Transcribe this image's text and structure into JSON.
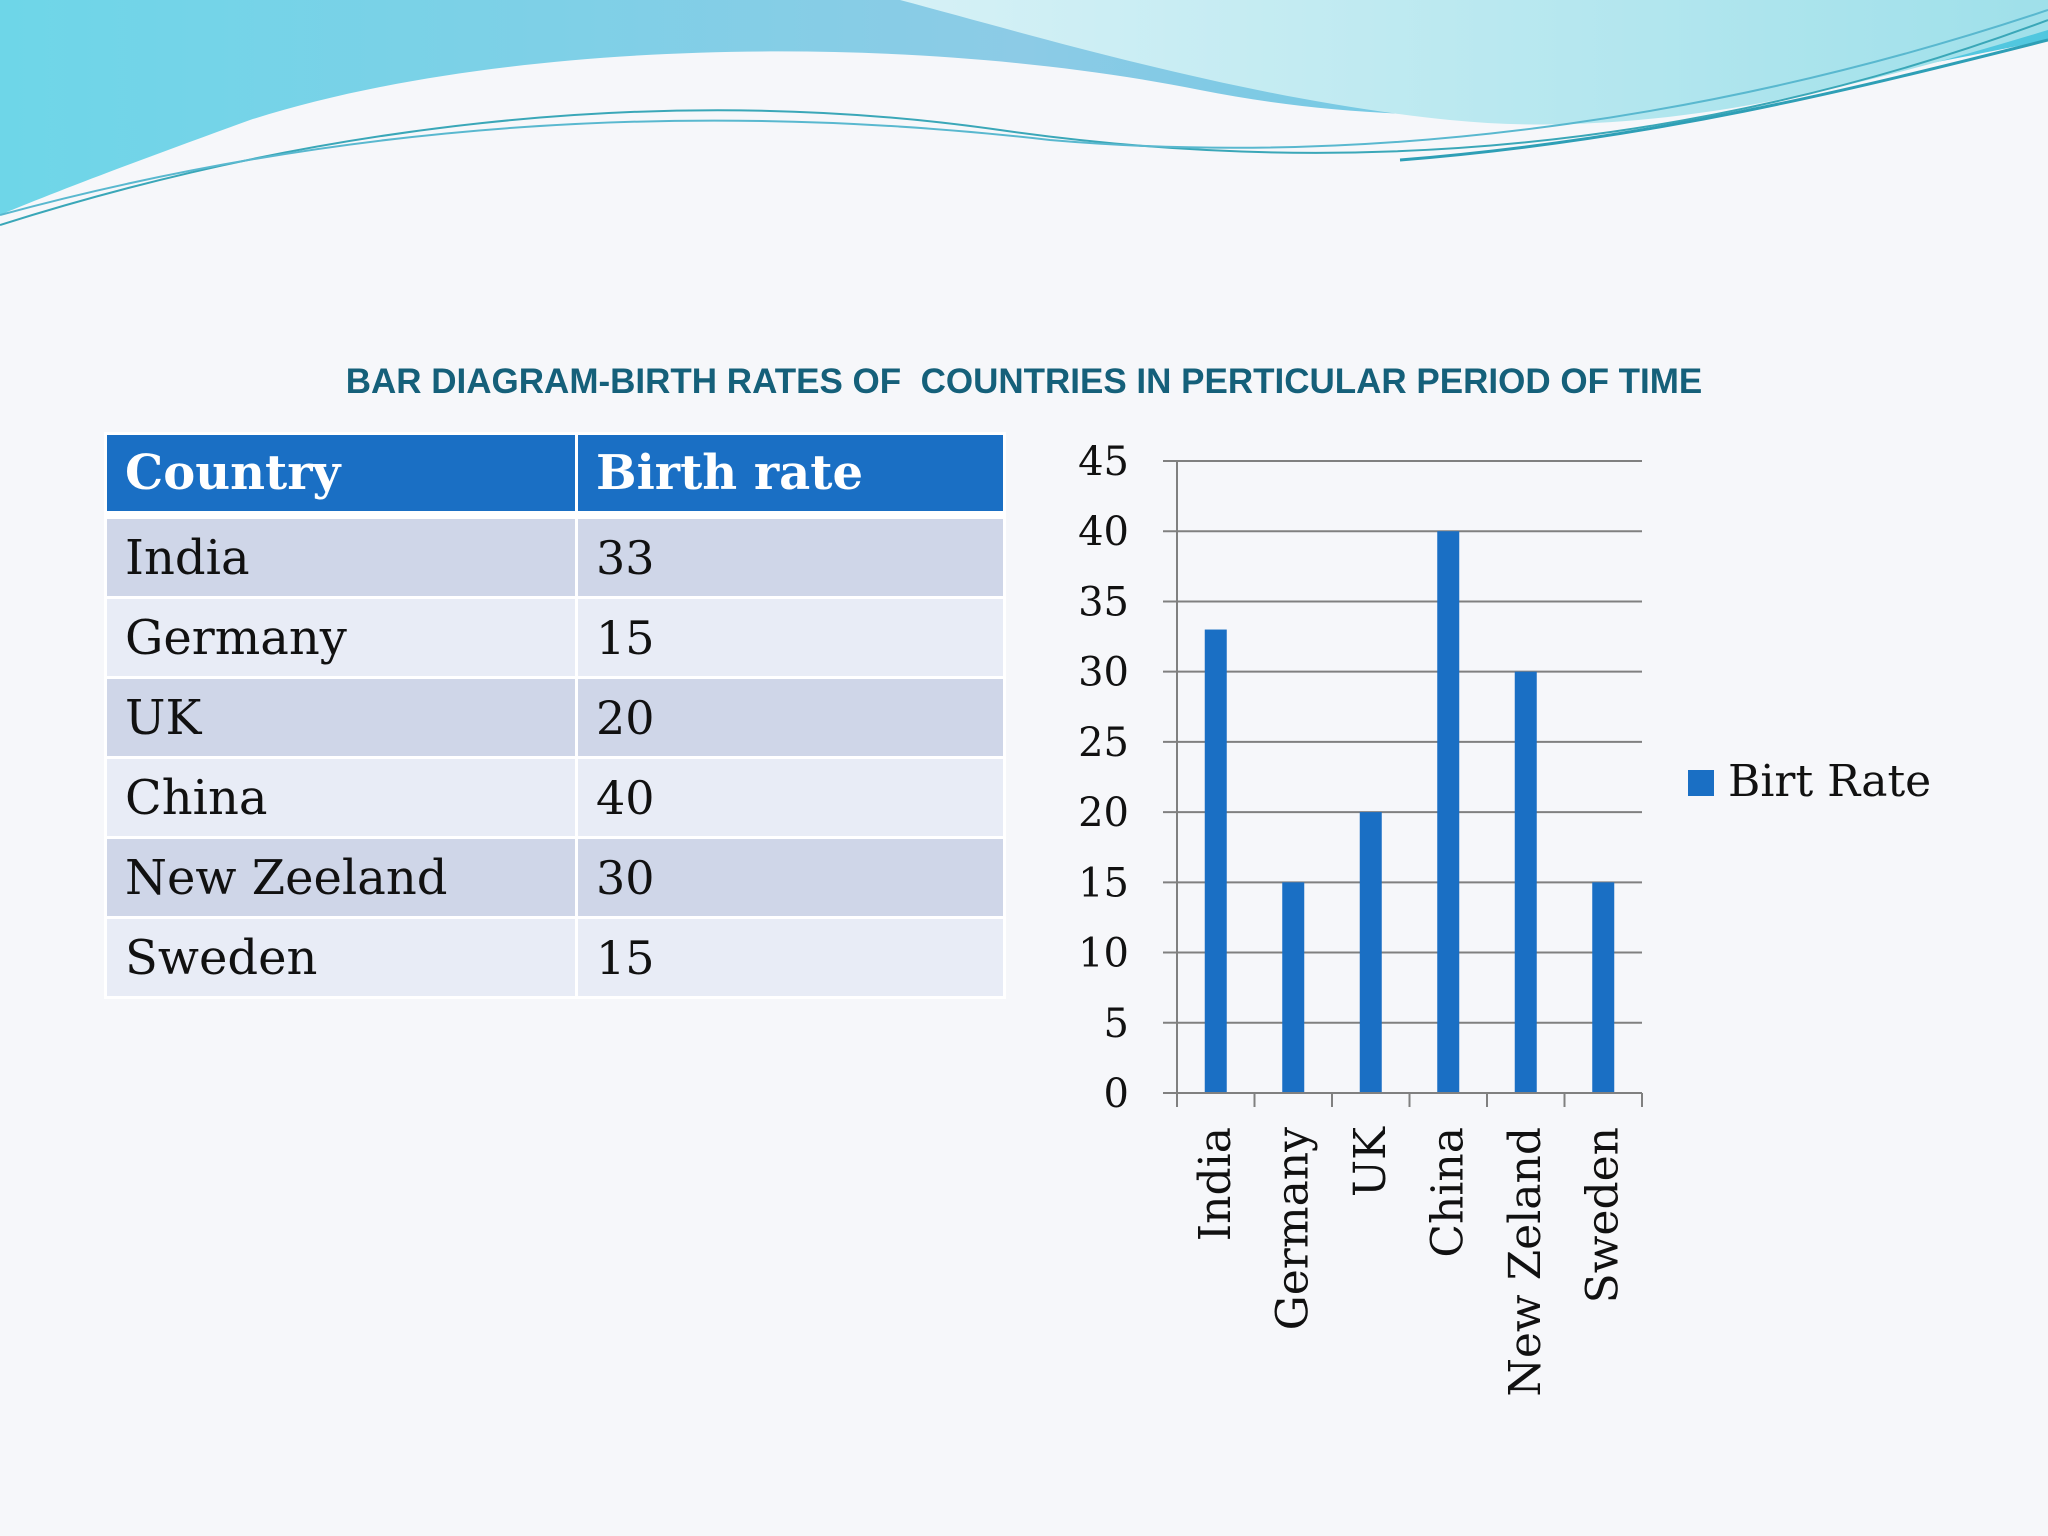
{
  "title": "BAR DIAGRAM-BIRTH RATES OF  COUNTRIES IN PERTICULAR PERIOD OF TIME",
  "table": {
    "headers": [
      "Country",
      "Birth rate"
    ],
    "rows": [
      {
        "country": "India",
        "rate": "33"
      },
      {
        "country": "Germany",
        "rate": "15"
      },
      {
        "country": "UK",
        "rate": "20"
      },
      {
        "country": "China",
        "rate": "40"
      },
      {
        "country": "New Zeeland",
        "rate": "30"
      },
      {
        "country": "Sweden",
        "rate": "15"
      }
    ]
  },
  "chart_data": {
    "type": "bar",
    "categories": [
      "India",
      "Germany",
      "UK",
      "China",
      "New Zeland",
      "Sweden"
    ],
    "series": [
      {
        "name": "Birt Rate",
        "values": [
          33,
          15,
          20,
          40,
          30,
          15
        ]
      }
    ],
    "ylim": [
      0,
      45
    ],
    "yticks": [
      0,
      5,
      10,
      15,
      20,
      25,
      30,
      35,
      40,
      45
    ],
    "grid": true,
    "legend": "right",
    "bar_color": "#1a6fc4",
    "xlabel": "",
    "ylabel": ""
  },
  "colors": {
    "header_bg": "#1a6fc4",
    "row_odd": "#cfd6e8",
    "row_even": "#e8ecf6",
    "title": "#15607a",
    "wave": "#5cc6e0"
  }
}
